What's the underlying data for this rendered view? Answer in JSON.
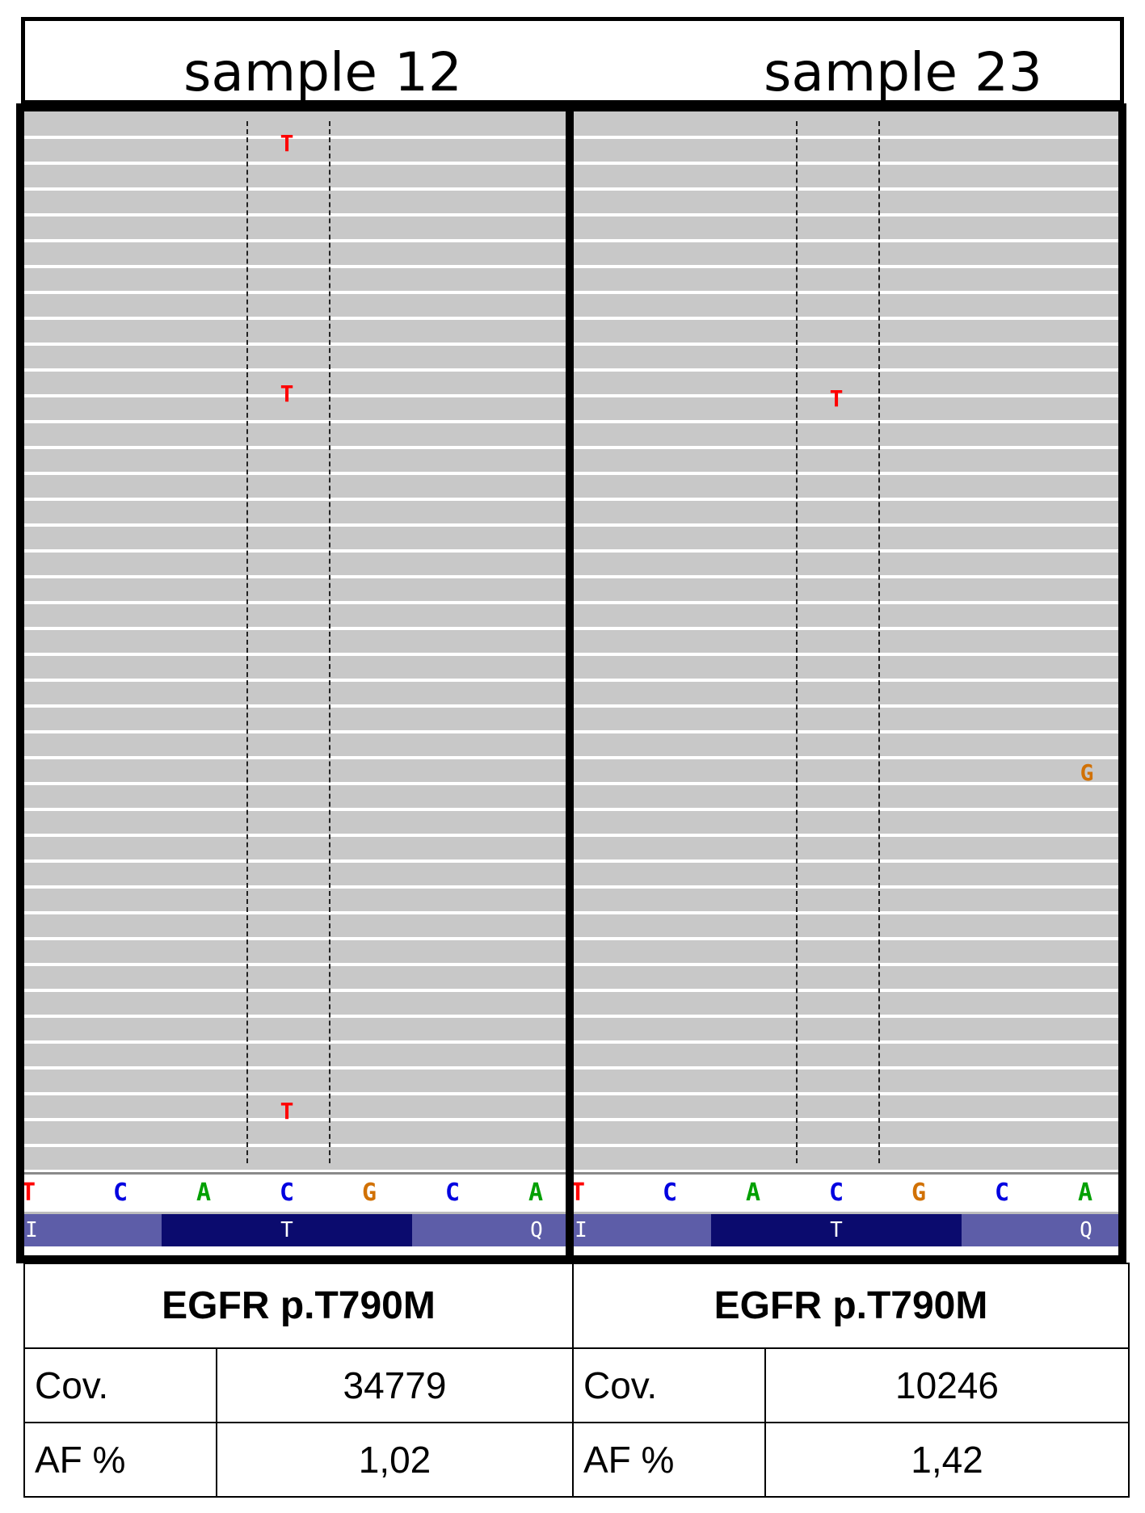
{
  "samples": [
    {
      "title": "sample  12",
      "mismatches": [
        "T",
        "T",
        "T"
      ],
      "reference_bases": [
        "T",
        "C",
        "A",
        "C",
        "G",
        "C",
        "A"
      ],
      "amino_acids": [
        "I",
        "T",
        "Q"
      ],
      "table": {
        "header": "EGFR p.T790M",
        "cov_label": "Cov.",
        "cov_value": "34779",
        "af_label": "AF %",
        "af_value": "1,02"
      }
    },
    {
      "title": "sample 23",
      "mismatches": [
        "T",
        "G"
      ],
      "reference_bases": [
        "T",
        "C",
        "A",
        "C",
        "G",
        "C",
        "A"
      ],
      "amino_acids": [
        "I",
        "T",
        "Q"
      ],
      "table": {
        "header": "EGFR p.T790M",
        "cov_label": "Cov.",
        "cov_value": "10246",
        "af_label": "AF %",
        "af_value": "1,42"
      }
    }
  ],
  "colors": {
    "read_background": "#c8c8c8",
    "base_A": "#00a000",
    "base_C": "#0000e0",
    "base_G": "#d17105",
    "base_T": "#ff0000",
    "aa_outer": "#5d5da8",
    "aa_codon": "#0b0b6e"
  }
}
